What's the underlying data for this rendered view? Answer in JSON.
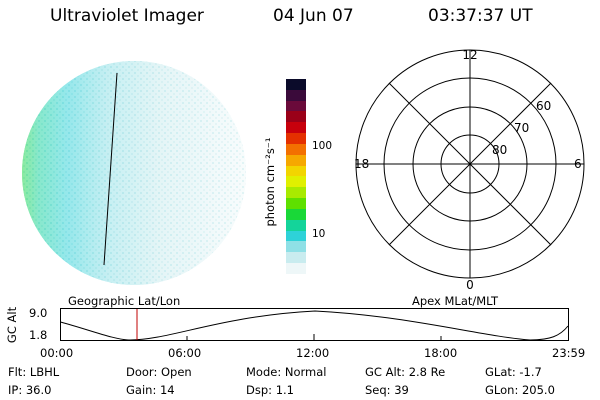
{
  "header": {
    "instrument": "Ultraviolet Imager",
    "date": "04 Jun 07",
    "time": "03:37:37 UT"
  },
  "colorbar": {
    "unit_label": "photon cm⁻²s⁻¹",
    "ticks": [
      "100",
      "10"
    ],
    "colors": [
      "#0b0b2a",
      "#3a0a3a",
      "#6a0a3a",
      "#9a0018",
      "#c8000c",
      "#e43000",
      "#f37000",
      "#f6a800",
      "#f2d500",
      "#e0f000",
      "#a8ea00",
      "#5ee000",
      "#19d838",
      "#14d49a",
      "#2ed2d8",
      "#8fe0e6",
      "#c9ecef",
      "#eef7f8"
    ]
  },
  "polar": {
    "mlt_labels": {
      "top": "12",
      "bottom": "0",
      "left": "18",
      "right": "6"
    },
    "lat_labels": [
      "60",
      "70",
      "80"
    ]
  },
  "strip": {
    "left_label": "Geographic Lat/Lon",
    "right_label": "Apex MLat/MLT",
    "axis_title": "GC Alt",
    "y_ticks": [
      "9.0",
      "1.8"
    ],
    "x_ticks": [
      "00:00",
      "06:00",
      "12:00",
      "18:00",
      "23:59"
    ]
  },
  "info": {
    "row1": [
      {
        "label": "Flt:",
        "value": "LBHL"
      },
      {
        "label": "Door:",
        "value": "Open"
      },
      {
        "label": "Mode:",
        "value": "Normal"
      },
      {
        "label": "GC Alt:",
        "value": "2.8 Re"
      },
      {
        "label": "GLat:",
        "value": "-1.7"
      }
    ],
    "row2": [
      {
        "label": "IP:",
        "value": "36.0"
      },
      {
        "label": "Gain:",
        "value": "14"
      },
      {
        "label": "Dsp:",
        "value": "1.1"
      },
      {
        "label": "Seq:",
        "value": "39"
      },
      {
        "label": "GLon:",
        "value": "205.0"
      }
    ]
  }
}
